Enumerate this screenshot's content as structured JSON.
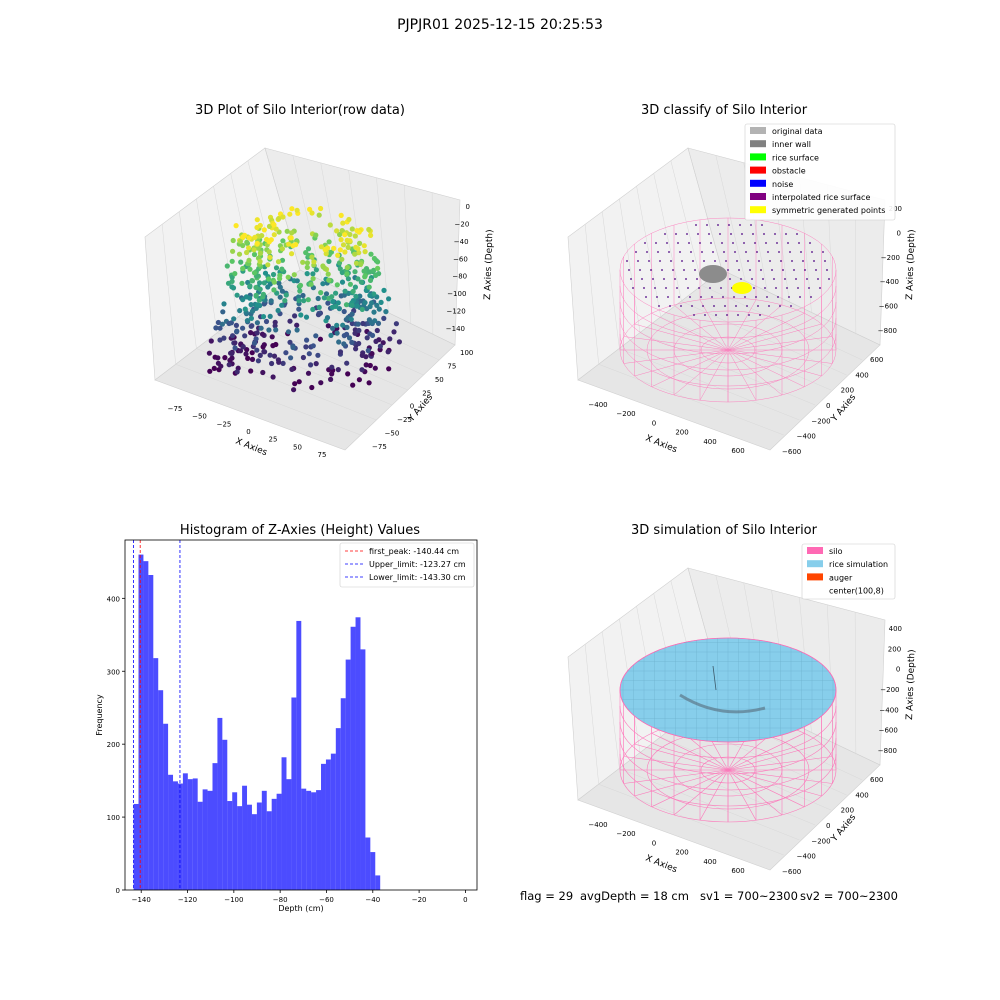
{
  "figure": {
    "suptitle": "PJPJR01 2025-12-15 20:25:53",
    "footer": {
      "flag": "flag = 29",
      "avg_depth": "avgDepth = 18 cm",
      "sv1": "sv1 = 700~2300",
      "sv2": "sv2 = 700~2300"
    }
  },
  "panels": {
    "raw": {
      "title": "3D Plot of Silo Interior(row data)",
      "xlabel": "X Axies",
      "ylabel": "Y Axies",
      "zlabel": "Z Axies (Depth)",
      "xticks": [
        "−75",
        "−50",
        "−25",
        "0",
        "25",
        "50",
        "75"
      ],
      "yticks": [
        "100",
        "75",
        "50",
        "25",
        "0",
        "−25",
        "−50",
        "−75"
      ],
      "zticks": [
        "0",
        "−20",
        "−40",
        "−60",
        "−80",
        "−100",
        "−120",
        "−140"
      ]
    },
    "classify": {
      "title": "3D classify of Silo Interior",
      "xlabel": "X Axies",
      "ylabel": "Y Axies",
      "zlabel": "Z Axies (Depth)",
      "xticks": [
        "−400",
        "−200",
        "0",
        "200",
        "400",
        "600"
      ],
      "yticks": [
        "600",
        "400",
        "200",
        "0",
        "−200",
        "−400",
        "−600"
      ],
      "zticks": [
        "200",
        "0",
        "−200",
        "−400",
        "−600",
        "−800"
      ],
      "legend": [
        {
          "label": "original data",
          "color": "#b3b3b3"
        },
        {
          "label": "inner wall",
          "color": "#808080"
        },
        {
          "label": "rice surface",
          "color": "#00ff00"
        },
        {
          "label": "obstacle",
          "color": "#ff0000"
        },
        {
          "label": "noise",
          "color": "#0000ff"
        },
        {
          "label": "interpolated rice surface",
          "color": "#800080"
        },
        {
          "label": "symmetric generated points",
          "color": "#ffff00"
        }
      ]
    },
    "simulation": {
      "title": "3D simulation of Silo Interior",
      "xlabel": "X Axies",
      "ylabel": "Y Axies",
      "zlabel": "Z Axies (Depth)",
      "xticks": [
        "−400",
        "−200",
        "0",
        "200",
        "400",
        "600"
      ],
      "yticks": [
        "600",
        "400",
        "200",
        "0",
        "−200",
        "−400",
        "−600"
      ],
      "zticks": [
        "400",
        "200",
        "0",
        "−200",
        "−400",
        "−600",
        "−800"
      ],
      "legend": [
        {
          "label": "silo",
          "color": "#ff69b4"
        },
        {
          "label": "rice simulation",
          "color": "#87ceeb"
        },
        {
          "label": "auger",
          "color": "#ff4500"
        },
        {
          "label": "center(100,8)",
          "color": ""
        }
      ]
    }
  },
  "chart_data": {
    "type": "bar",
    "title": "Histogram of Z-Axies (Height) Values",
    "xlabel": "Depth (cm)",
    "ylabel": "Frequency",
    "xlim": [
      -147,
      5
    ],
    "ylim": [
      0,
      480
    ],
    "xticks": [
      -140,
      -120,
      -100,
      -80,
      -60,
      -40,
      -20,
      0
    ],
    "yticks": [
      0,
      100,
      200,
      300,
      400
    ],
    "bin_start": -143.3,
    "bin_width": 2.13,
    "color": "#0000ff",
    "values": [
      118,
      460,
      451,
      432,
      318,
      274,
      228,
      158,
      149,
      146,
      160,
      152,
      153,
      121,
      138,
      136,
      174,
      236,
      206,
      122,
      134,
      115,
      143,
      117,
      104,
      120,
      136,
      108,
      125,
      132,
      182,
      152,
      264,
      369,
      139,
      136,
      134,
      137,
      173,
      179,
      187,
      222,
      263,
      316,
      361,
      374,
      330,
      72,
      52,
      20
    ],
    "lines": [
      {
        "label": "first_peak: -140.44 cm",
        "x": -140.44,
        "color": "#ff0000"
      },
      {
        "label": "Upper_limit: -123.27 cm",
        "x": -123.27,
        "color": "#0000ff"
      },
      {
        "label": "Lower_limit: -143.30 cm",
        "x": -143.3,
        "color": "#0000ff"
      }
    ]
  }
}
